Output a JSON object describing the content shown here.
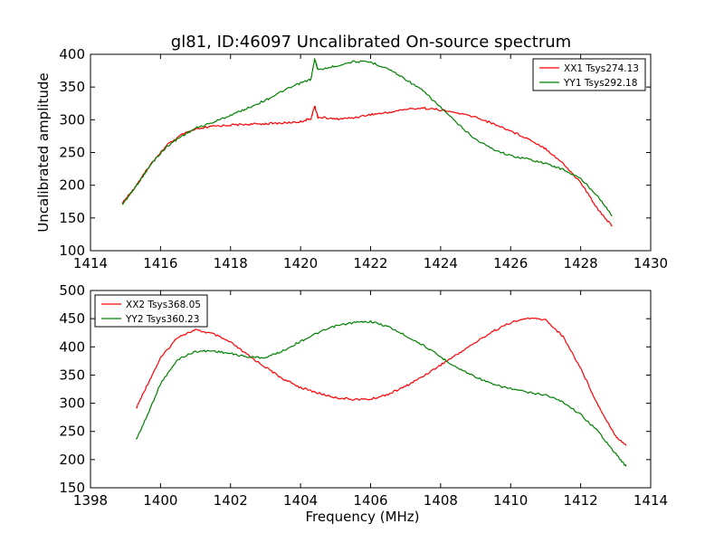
{
  "title": "gl81, ID:46097 Uncalibrated On-source spectrum",
  "colors": {
    "red": "#ff0000",
    "green": "#008000"
  },
  "chart_data": [
    {
      "type": "line",
      "ylabel": "Uncalibrated amplitude",
      "xlabel": "",
      "xlim": [
        1414,
        1430
      ],
      "ylim": [
        100,
        400
      ],
      "xticks": [
        1414,
        1416,
        1418,
        1420,
        1422,
        1424,
        1426,
        1428,
        1430
      ],
      "yticks": [
        100,
        150,
        200,
        250,
        300,
        350,
        400
      ],
      "grid": false,
      "legend_position": "top-right",
      "series": [
        {
          "name": "XX1 Tsys274.13",
          "color": "#ff0000",
          "x": [
            1414.9,
            1415.2,
            1415.5,
            1415.8,
            1416.2,
            1416.6,
            1417.0,
            1417.5,
            1418.0,
            1418.5,
            1419.0,
            1419.5,
            1420.0,
            1420.3,
            1420.4,
            1420.5,
            1421.0,
            1421.5,
            1422.0,
            1422.5,
            1423.0,
            1423.5,
            1424.0,
            1424.5,
            1425.0,
            1425.5,
            1426.0,
            1426.5,
            1427.0,
            1427.5,
            1428.0,
            1428.5,
            1428.9
          ],
          "y": [
            172,
            192,
            215,
            238,
            262,
            277,
            285,
            290,
            292,
            293,
            294,
            295,
            297,
            302,
            321,
            304,
            301,
            303,
            308,
            311,
            316,
            318,
            315,
            310,
            304,
            294,
            283,
            271,
            256,
            233,
            204,
            163,
            137
          ]
        },
        {
          "name": "YY1 Tsys292.18",
          "color": "#008000",
          "x": [
            1414.9,
            1415.2,
            1415.5,
            1415.8,
            1416.2,
            1416.6,
            1417.0,
            1417.5,
            1418.0,
            1418.5,
            1419.0,
            1419.5,
            1420.0,
            1420.3,
            1420.4,
            1420.5,
            1421.0,
            1421.5,
            1422.0,
            1422.5,
            1423.0,
            1423.5,
            1424.0,
            1424.5,
            1425.0,
            1425.5,
            1426.0,
            1426.5,
            1427.0,
            1427.5,
            1428.0,
            1428.5,
            1428.9
          ],
          "y": [
            170,
            191,
            214,
            237,
            260,
            275,
            287,
            296,
            307,
            318,
            330,
            344,
            356,
            362,
            393,
            376,
            382,
            389,
            388,
            378,
            362,
            344,
            319,
            293,
            270,
            255,
            245,
            240,
            233,
            224,
            210,
            183,
            153
          ]
        }
      ]
    },
    {
      "type": "line",
      "xlabel": "Frequency (MHz)",
      "ylabel": "",
      "xlim": [
        1398,
        1414
      ],
      "ylim": [
        150,
        500
      ],
      "xticks": [
        1398,
        1400,
        1402,
        1404,
        1406,
        1408,
        1410,
        1412,
        1414
      ],
      "yticks": [
        150,
        200,
        250,
        300,
        350,
        400,
        450,
        500
      ],
      "grid": false,
      "legend_position": "top-left",
      "series": [
        {
          "name": "XX2 Tsys368.05",
          "color": "#ff0000",
          "x": [
            1399.3,
            1399.6,
            1400.0,
            1400.5,
            1401.0,
            1401.5,
            1402.0,
            1402.5,
            1403.0,
            1403.5,
            1404.0,
            1404.5,
            1405.0,
            1405.5,
            1406.0,
            1406.5,
            1407.0,
            1407.5,
            1408.0,
            1408.5,
            1409.0,
            1409.5,
            1410.0,
            1410.5,
            1411.0,
            1411.5,
            1412.0,
            1412.5,
            1413.0,
            1413.3
          ],
          "y": [
            290,
            330,
            380,
            418,
            430,
            423,
            408,
            385,
            364,
            343,
            328,
            318,
            310,
            307,
            307,
            316,
            330,
            348,
            368,
            388,
            408,
            428,
            443,
            451,
            448,
            418,
            362,
            296,
            242,
            225
          ]
        },
        {
          "name": "YY2 Tsys360.23",
          "color": "#008000",
          "x": [
            1399.3,
            1399.6,
            1400.0,
            1400.5,
            1401.0,
            1401.5,
            1402.0,
            1402.5,
            1403.0,
            1403.5,
            1404.0,
            1404.5,
            1405.0,
            1405.5,
            1406.0,
            1406.5,
            1407.0,
            1407.5,
            1408.0,
            1408.5,
            1409.0,
            1409.5,
            1410.0,
            1410.5,
            1411.0,
            1411.5,
            1412.0,
            1412.5,
            1413.0,
            1413.3
          ],
          "y": [
            235,
            275,
            335,
            378,
            392,
            393,
            388,
            382,
            381,
            393,
            410,
            425,
            437,
            443,
            445,
            436,
            420,
            403,
            382,
            362,
            347,
            333,
            326,
            319,
            315,
            302,
            280,
            250,
            210,
            188
          ]
        }
      ]
    }
  ]
}
